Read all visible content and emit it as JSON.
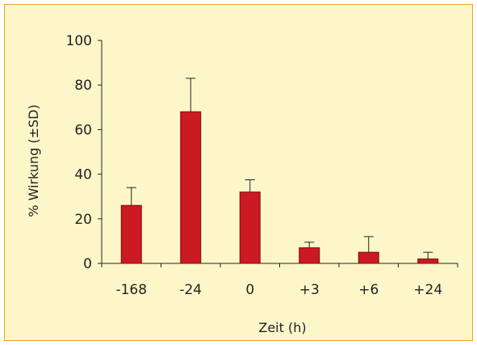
{
  "chart_data": {
    "type": "bar",
    "title": "",
    "xlabel": "Zeit (h)",
    "ylabel": "% Wirkung (±SD)",
    "categories": [
      "-168",
      "-24",
      "0",
      "+3",
      "+6",
      "+24"
    ],
    "values": [
      26,
      68,
      32,
      7,
      5,
      2
    ],
    "sd": [
      8,
      15,
      5.5,
      2.5,
      7,
      3
    ],
    "ylim": [
      0,
      100
    ],
    "yticks": [
      0,
      20,
      40,
      60,
      80,
      100
    ],
    "grid": false,
    "legend": "none",
    "colors": {
      "bar": "#cc1a22",
      "bar_stroke": "#7a0d10",
      "background": "#fdf6c8",
      "frame_border": "#f0a020",
      "axis": "#222222"
    }
  }
}
